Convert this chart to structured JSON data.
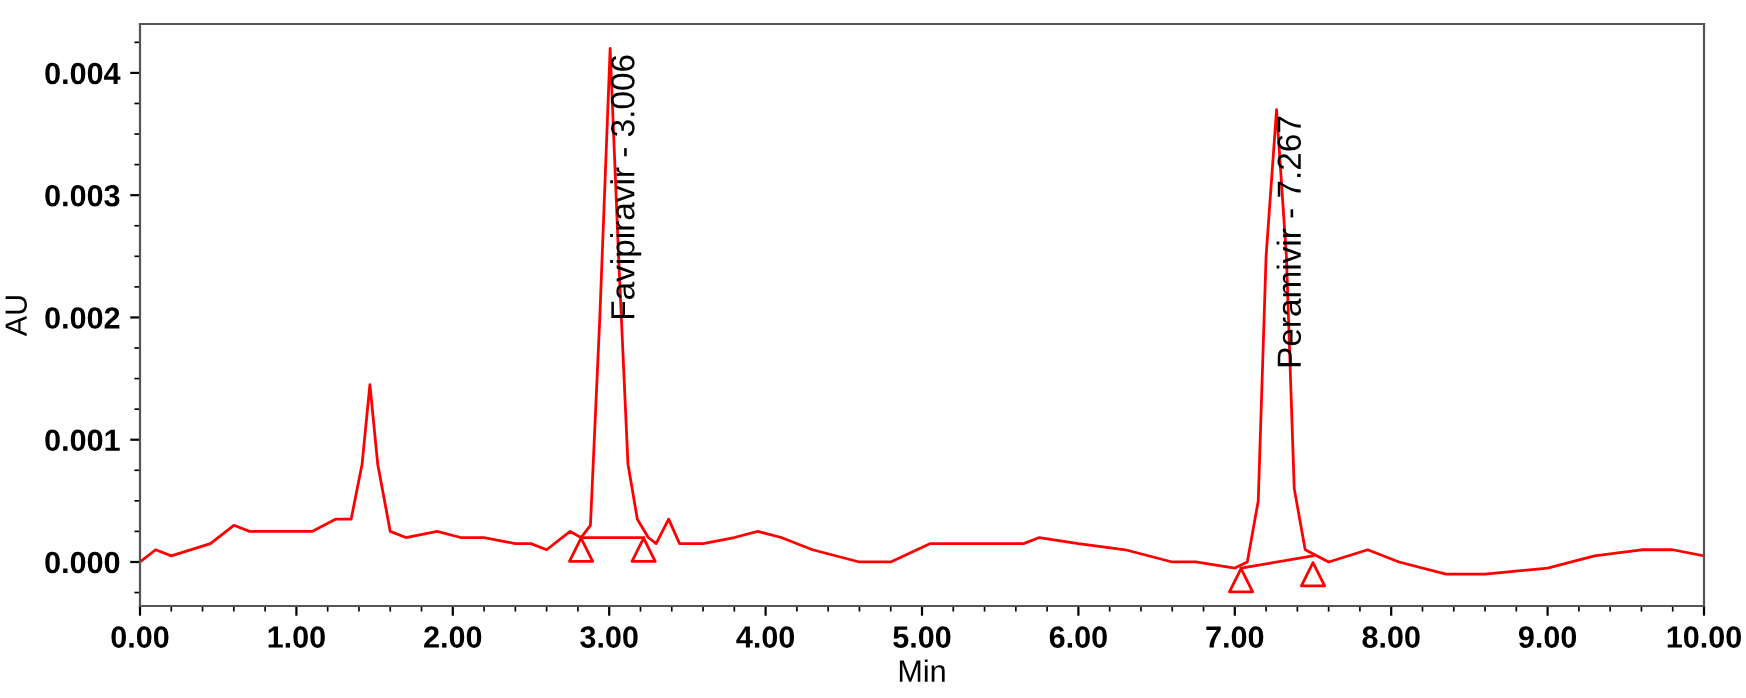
{
  "chart_data": {
    "type": "line",
    "xlabel": "Min",
    "ylabel": "AU",
    "xlim": [
      0,
      10
    ],
    "ylim": [
      -0.00036,
      0.0044
    ],
    "xticks": [
      {
        "value": 0,
        "label": "0.00"
      },
      {
        "value": 1,
        "label": "1.00"
      },
      {
        "value": 2,
        "label": "2.00"
      },
      {
        "value": 3,
        "label": "3.00"
      },
      {
        "value": 4,
        "label": "4.00"
      },
      {
        "value": 5,
        "label": "5.00"
      },
      {
        "value": 6,
        "label": "6.00"
      },
      {
        "value": 7,
        "label": "7.00"
      },
      {
        "value": 8,
        "label": "8.00"
      },
      {
        "value": 9,
        "label": "9.00"
      },
      {
        "value": 10,
        "label": "10.00"
      }
    ],
    "yticks": [
      {
        "value": 0,
        "label": "0.000"
      },
      {
        "value": 0.001,
        "label": "0.001"
      },
      {
        "value": 0.002,
        "label": "0.002"
      },
      {
        "value": 0.003,
        "label": "0.003"
      },
      {
        "value": 0.004,
        "label": "0.004"
      }
    ],
    "grid": false,
    "legend": false,
    "series": [
      {
        "color": "#ff0000",
        "line_style": "solid",
        "marker": "none",
        "x": [
          0,
          0.1,
          0.2,
          0.45,
          0.6,
          0.7,
          0.85,
          1.0,
          1.1,
          1.25,
          1.35,
          1.42,
          1.47,
          1.52,
          1.6,
          1.7,
          1.9,
          2.05,
          2.2,
          2.4,
          2.5,
          2.6,
          2.75,
          2.82,
          2.88,
          2.94,
          3.006,
          3.06,
          3.12,
          3.18,
          3.25,
          3.3,
          3.38,
          3.45,
          3.6,
          3.8,
          3.95,
          4.1,
          4.3,
          4.6,
          4.8,
          5.05,
          5.3,
          5.65,
          5.75,
          6.0,
          6.3,
          6.6,
          6.75,
          7.0,
          7.08,
          7.15,
          7.2,
          7.267,
          7.33,
          7.38,
          7.45,
          7.6,
          7.85,
          8.05,
          8.35,
          8.6,
          9.0,
          9.3,
          9.6,
          9.8,
          10.0
        ],
        "values": [
          0.0,
          0.0001,
          5e-05,
          0.00015,
          0.0003,
          0.00025,
          0.00025,
          0.00025,
          0.00025,
          0.00035,
          0.00035,
          0.0008,
          0.00145,
          0.0008,
          0.00025,
          0.0002,
          0.00025,
          0.0002,
          0.0002,
          0.00015,
          0.00015,
          0.0001,
          0.00025,
          0.0002,
          0.0003,
          0.002,
          0.0042,
          0.0025,
          0.0008,
          0.00035,
          0.0002,
          0.00015,
          0.00035,
          0.00015,
          0.00015,
          0.0002,
          0.00025,
          0.0002,
          0.0001,
          0.0,
          0.0,
          0.00015,
          0.00015,
          0.00015,
          0.0002,
          0.00015,
          0.0001,
          0.0,
          0.0,
          -5e-05,
          0.0,
          0.0005,
          0.0025,
          0.0037,
          0.0025,
          0.0006,
          0.0001,
          0.0,
          0.0001,
          0.0,
          -0.0001,
          -0.0001,
          -5e-05,
          5e-05,
          0.0001,
          0.0001,
          5e-05
        ]
      },
      {
        "color": "#ff0000",
        "line_style": "solid",
        "marker": "none",
        "x": [
          2.82,
          3.22
        ],
        "values": [
          0.0002,
          0.0002
        ]
      },
      {
        "color": "#ff0000",
        "line_style": "solid",
        "marker": "none",
        "x": [
          7.04,
          7.5
        ],
        "values": [
          -5e-05,
          5e-05
        ]
      },
      {
        "type": "scatter",
        "color": "#ff0000",
        "marker": "triangle",
        "x": [
          2.82,
          3.22,
          7.04,
          7.5
        ],
        "values": [
          0.0001,
          0.0001,
          -0.00015,
          -0.0001
        ]
      }
    ],
    "annotations": [
      {
        "text": "Favipiravir - 3.006",
        "x": 3.006,
        "y": 0.0042
      },
      {
        "text": "Peramivir - 7.267",
        "x": 7.267,
        "y": 0.0037
      }
    ]
  }
}
